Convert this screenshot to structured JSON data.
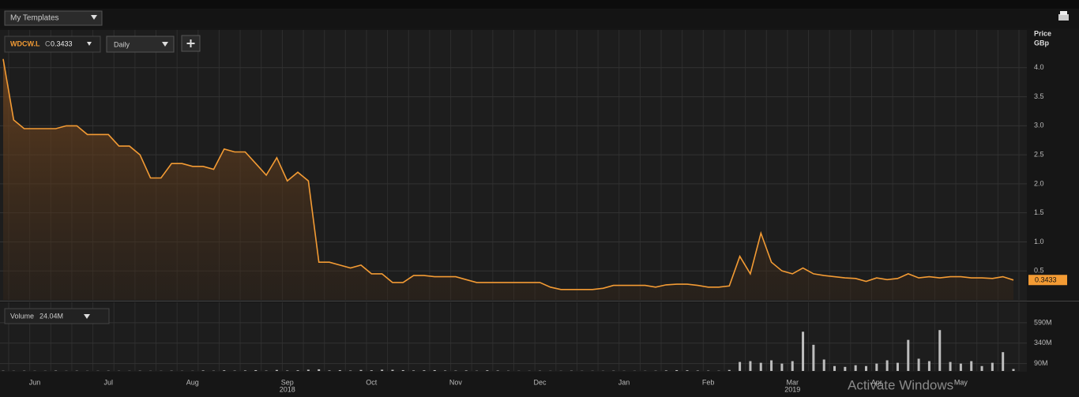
{
  "toolbar": {
    "templates": "My Templates"
  },
  "watermark": "Activate Windows",
  "chart_data": [
    {
      "type": "line",
      "ticker": "WDCW.L",
      "close_prefix": "C",
      "interval": "Daily",
      "ylabel": "Price",
      "yunit": "GBp",
      "color": "#f39b34",
      "grid": true,
      "categories": [
        null,
        null,
        null,
        "Jun",
        null,
        null,
        null,
        null,
        null,
        null,
        "Jul",
        null,
        null,
        null,
        null,
        null,
        null,
        null,
        "Aug",
        null,
        null,
        null,
        null,
        null,
        null,
        null,
        null,
        "Sep",
        null,
        null,
        null,
        null,
        null,
        null,
        null,
        "Oct",
        null,
        null,
        null,
        null,
        null,
        null,
        null,
        "Nov",
        null,
        null,
        null,
        null,
        null,
        null,
        null,
        "Dec",
        null,
        null,
        null,
        null,
        null,
        null,
        null,
        "Jan",
        null,
        null,
        null,
        null,
        null,
        null,
        null,
        "Feb",
        null,
        null,
        null,
        null,
        null,
        null,
        null,
        "Mar",
        null,
        null,
        null,
        null,
        null,
        null,
        null,
        "Apr",
        null,
        null,
        null,
        null,
        null,
        null,
        null,
        "May",
        null,
        null,
        null,
        null,
        null
      ],
      "year_labels": [
        {
          "category": "Sep",
          "label": "2018"
        },
        {
          "category": "Mar",
          "label": "2019"
        }
      ],
      "values": [
        4.15,
        3.1,
        2.95,
        2.95,
        2.95,
        2.95,
        3.0,
        3.0,
        2.85,
        2.85,
        2.85,
        2.65,
        2.65,
        2.5,
        2.1,
        2.1,
        2.35,
        2.35,
        2.3,
        2.3,
        2.25,
        2.6,
        2.55,
        2.55,
        2.35,
        2.15,
        2.45,
        2.05,
        2.2,
        2.05,
        0.65,
        0.65,
        0.6,
        0.55,
        0.6,
        0.45,
        0.45,
        0.3,
        0.3,
        0.42,
        0.42,
        0.4,
        0.4,
        0.4,
        0.35,
        0.3,
        0.3,
        0.3,
        0.3,
        0.3,
        0.3,
        0.3,
        0.22,
        0.18,
        0.18,
        0.18,
        0.18,
        0.2,
        0.25,
        0.25,
        0.25,
        0.25,
        0.22,
        0.26,
        0.27,
        0.27,
        0.25,
        0.22,
        0.22,
        0.24,
        0.75,
        0.45,
        1.15,
        0.65,
        0.5,
        0.45,
        0.55,
        0.45,
        0.42,
        0.4,
        0.38,
        0.37,
        0.32,
        0.38,
        0.35,
        0.37,
        0.45,
        0.38,
        0.4,
        0.38,
        0.4,
        0.4,
        0.38,
        0.38,
        0.37,
        0.4,
        0.3433
      ],
      "ylim": [
        0,
        4.65
      ],
      "yticks": [
        0.5,
        {
          "value": 1,
          "label": "1.0"
        },
        1.5,
        {
          "value": 2,
          "label": "2.0"
        },
        2.5,
        {
          "value": 3,
          "label": "3.0"
        },
        3.5,
        {
          "value": 4,
          "label": "4.0"
        }
      ]
    },
    {
      "type": "bar",
      "title": "Volume",
      "legend_value_label": "24.04M",
      "color": "#bdbdbd",
      "grid": true,
      "values": [
        3,
        2,
        3,
        2,
        2,
        4,
        2,
        3,
        2,
        2,
        3,
        2,
        2,
        3,
        2,
        2,
        3,
        2,
        2,
        6,
        3,
        8,
        4,
        6,
        10,
        4,
        12,
        5,
        8,
        15,
        20,
        6,
        10,
        5,
        12,
        8,
        15,
        14,
        10,
        6,
        8,
        10,
        5,
        4,
        6,
        3,
        8,
        5,
        3,
        2,
        2,
        3,
        2,
        2,
        3,
        2,
        2,
        2,
        3,
        2,
        2,
        2,
        3,
        6,
        10,
        8,
        5,
        4,
        3,
        12,
        110,
        120,
        100,
        130,
        90,
        120,
        480,
        320,
        140,
        60,
        50,
        70,
        60,
        90,
        130,
        100,
        380,
        150,
        120,
        500,
        110,
        90,
        120,
        60,
        100,
        230,
        24.04
      ],
      "ylim": [
        0,
        840
      ],
      "yticks": [
        {
          "value": 90,
          "label": "90M"
        },
        {
          "value": 340,
          "label": "340M"
        },
        {
          "value": 590,
          "label": "590M"
        }
      ]
    }
  ]
}
